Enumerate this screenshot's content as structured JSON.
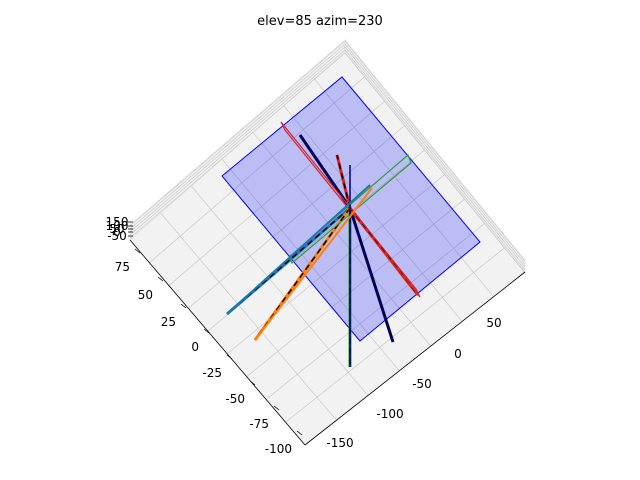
{
  "chart_data": {
    "type": "line3d",
    "title": "elev=85 azim=230",
    "view": {
      "elev": 85,
      "azim": 230
    },
    "axes": {
      "x": {
        "ticks": [
          -100,
          -75,
          -50,
          -25,
          0,
          25,
          50,
          75
        ]
      },
      "y": {
        "ticks": [
          -150,
          -100,
          -50,
          0,
          50
        ]
      },
      "z": {
        "ticks": [
          -50,
          0,
          50,
          100,
          150
        ]
      }
    },
    "plane": {
      "color": "#0000ff",
      "fill_alpha": 0.22
    },
    "series": [
      {
        "color": "#1f77b4",
        "style": "solid"
      },
      {
        "color": "#ff7f0e",
        "style": "solid"
      },
      {
        "color": "#2ca02c",
        "style": "solid"
      },
      {
        "color": "#d62728",
        "style": "solid"
      },
      {
        "color": "#000000",
        "style": "dashed"
      },
      {
        "color": "#000080",
        "style": "solid"
      }
    ]
  }
}
